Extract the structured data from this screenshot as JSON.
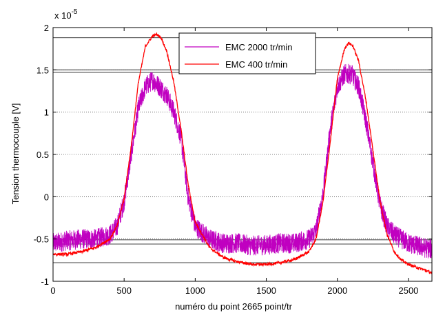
{
  "chart_data": {
    "type": "line",
    "title": "",
    "xlabel": "numéro du point 2665 point/tr",
    "ylabel": "Tension thermocouple [V]",
    "y_exponent_label": "x 10",
    "y_exponent_power": "-5",
    "xlim": [
      0,
      2665
    ],
    "ylim": [
      -1,
      2
    ],
    "xticks": [
      0,
      500,
      1000,
      1500,
      2000,
      2500
    ],
    "yticks": [
      -1,
      -0.5,
      0,
      0.5,
      1,
      1.5,
      2
    ],
    "xtick_labels": [
      "0",
      "500",
      "1000",
      "1500",
      "2000",
      "2500"
    ],
    "ytick_labels": [
      "-1",
      "-0.5",
      "0",
      "0.5",
      "1",
      "1.5",
      "2"
    ],
    "grid": "y-dotted",
    "legend_position": "top-right",
    "reference_lines_y": [
      1.88,
      1.5,
      1.47,
      -0.51,
      -0.56,
      -0.78
    ],
    "series": [
      {
        "name": "EMC 2000 tr/min",
        "color": "#c000c0",
        "noise": 0.12,
        "x": [
          0,
          100,
          200,
          300,
          400,
          450,
          500,
          550,
          600,
          650,
          700,
          750,
          800,
          850,
          900,
          950,
          1000,
          1100,
          1200,
          1300,
          1400,
          1500,
          1600,
          1700,
          1800,
          1850,
          1900,
          1950,
          2000,
          2050,
          2100,
          2150,
          2200,
          2250,
          2300,
          2350,
          2400,
          2450,
          2500,
          2600,
          2665
        ],
        "y": [
          -0.55,
          -0.52,
          -0.5,
          -0.5,
          -0.45,
          -0.35,
          -0.05,
          0.5,
          1.05,
          1.3,
          1.38,
          1.3,
          1.2,
          1.0,
          0.7,
          0.0,
          -0.35,
          -0.5,
          -0.55,
          -0.55,
          -0.58,
          -0.57,
          -0.55,
          -0.55,
          -0.5,
          -0.4,
          0.05,
          0.8,
          1.3,
          1.45,
          1.45,
          1.3,
          0.9,
          0.4,
          -0.1,
          -0.35,
          -0.45,
          -0.5,
          -0.55,
          -0.6,
          -0.62
        ]
      },
      {
        "name": "EMC 400 tr/min",
        "color": "#ff0000",
        "noise": 0.015,
        "x": [
          0,
          100,
          200,
          300,
          400,
          450,
          500,
          550,
          600,
          650,
          700,
          730,
          760,
          800,
          850,
          900,
          950,
          1000,
          1100,
          1200,
          1300,
          1400,
          1500,
          1600,
          1700,
          1800,
          1850,
          1900,
          1950,
          2000,
          2050,
          2080,
          2110,
          2150,
          2200,
          2250,
          2300,
          2350,
          2400,
          2450,
          2500,
          2600,
          2665
        ],
        "y": [
          -0.68,
          -0.68,
          -0.65,
          -0.6,
          -0.5,
          -0.35,
          -0.02,
          0.6,
          1.35,
          1.78,
          1.9,
          1.92,
          1.88,
          1.72,
          1.35,
          0.8,
          0.15,
          -0.3,
          -0.6,
          -0.72,
          -0.77,
          -0.8,
          -0.8,
          -0.78,
          -0.74,
          -0.65,
          -0.5,
          -0.05,
          0.65,
          1.4,
          1.75,
          1.82,
          1.78,
          1.6,
          1.15,
          0.55,
          -0.05,
          -0.45,
          -0.65,
          -0.75,
          -0.8,
          -0.86,
          -0.9
        ]
      }
    ]
  }
}
